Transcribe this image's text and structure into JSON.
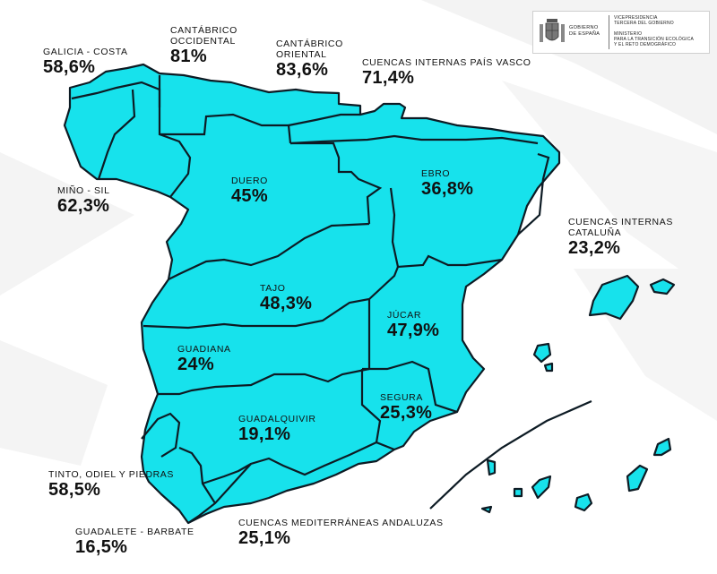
{
  "header": {
    "gov_name": [
      "GOBIERNO",
      "DE ESPAÑA"
    ],
    "ministry_lines": [
      "VICEPRESIDENCIA",
      "TERCERA DEL GOBIERNO",
      "",
      "MINISTERIO",
      "PARA LA TRANSICIÓN ECOLÓGICA",
      "Y EL RETO DEMOGRÁFICO"
    ]
  },
  "colors": {
    "basin_fill": "#17e2ec",
    "border": "#0d1b24",
    "background_shapes": "#f1f1f1"
  },
  "basins": [
    {
      "name": "GALICIA - COSTA",
      "percentage": "58,6%"
    },
    {
      "name": "CANTÁBRICO OCCIDENTAL",
      "name_lines": [
        "CANTÁBRICO",
        "OCCIDENTAL"
      ],
      "percentage": "81%"
    },
    {
      "name": "CANTÁBRICO ORIENTAL",
      "name_lines": [
        "CANTÁBRICO",
        "ORIENTAL"
      ],
      "percentage": "83,6%"
    },
    {
      "name": "CUENCAS INTERNAS PAÍS VASCO",
      "percentage": "71,4%"
    },
    {
      "name": "MIÑO - SIL",
      "percentage": "62,3%"
    },
    {
      "name": "DUERO",
      "percentage": "45%"
    },
    {
      "name": "EBRO",
      "percentage": "36,8%"
    },
    {
      "name": "CUENCAS INTERNAS CATALUÑA",
      "name_lines": [
        "CUENCAS INTERNAS",
        "CATALUÑA"
      ],
      "percentage": "23,2%"
    },
    {
      "name": "TAJO",
      "percentage": "48,3%"
    },
    {
      "name": "JÚCAR",
      "percentage": "47,9%"
    },
    {
      "name": "GUADIANA",
      "percentage": "24%"
    },
    {
      "name": "SEGURA",
      "percentage": "25,3%"
    },
    {
      "name": "GUADALQUIVIR",
      "percentage": "19,1%"
    },
    {
      "name": "TINTO, ODIEL Y PIEDRAS",
      "percentage": "58,5%"
    },
    {
      "name": "GUADALETE - BARBATE",
      "percentage": "16,5%"
    },
    {
      "name": "CUENCAS MEDITERRÁNEAS ANDALUZAS",
      "percentage": "25,1%"
    }
  ]
}
